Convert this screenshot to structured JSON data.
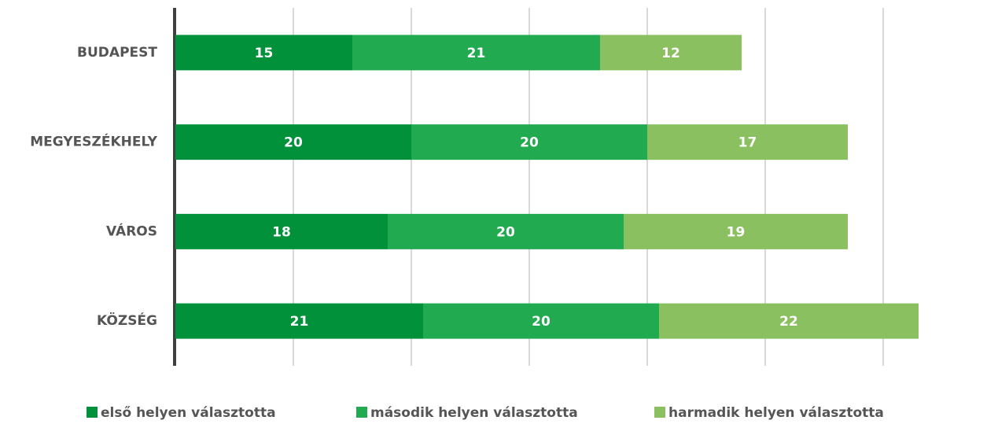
{
  "chart_data": {
    "type": "stacked_barh",
    "categories": [
      "BUDAPEST",
      "MEGYESZÉKHELY",
      "VÁROS",
      "KÖZSÉG"
    ],
    "series": [
      {
        "name": "első helyen választotta",
        "color": "#00913a",
        "values": [
          15,
          20,
          18,
          21
        ]
      },
      {
        "name": "második helyen választotta",
        "color": "#22aa50",
        "values": [
          21,
          20,
          20,
          20
        ]
      },
      {
        "name": "harmadik helyen választotta",
        "color": "#8bc060",
        "values": [
          12,
          17,
          19,
          22
        ]
      }
    ],
    "xlim": [
      0,
      65
    ],
    "xticks": [
      0,
      10,
      20,
      30,
      40,
      50,
      60
    ],
    "grid": true,
    "legend": "bottom"
  }
}
